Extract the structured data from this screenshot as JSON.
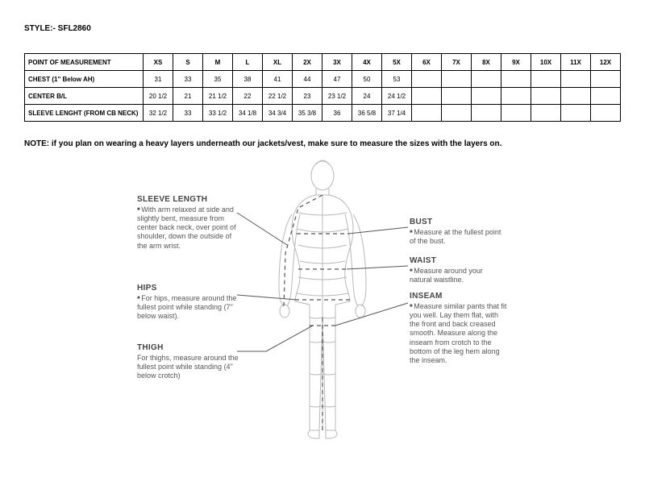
{
  "style_label": "STYLE:- SFL2860",
  "table": {
    "header_first": "POINT OF MEASUREMENT",
    "sizes": [
      "XS",
      "S",
      "M",
      "L",
      "XL",
      "2X",
      "3X",
      "4X",
      "5X",
      "6X",
      "7X",
      "8X",
      "9X",
      "10X",
      "11X",
      "12X"
    ],
    "rows": [
      {
        "label": "CHEST (1\" Below AH)",
        "values": [
          "31",
          "33",
          "35",
          "38",
          "41",
          "44",
          "47",
          "50",
          "53",
          "",
          "",
          "",
          "",
          "",
          "",
          ""
        ]
      },
      {
        "label": "CENTER B/L",
        "values": [
          "20 1/2",
          "21",
          "21 1/2",
          "22",
          "22 1/2",
          "23",
          "23 1/2",
          "24",
          "24 1/2",
          "",
          "",
          "",
          "",
          "",
          "",
          ""
        ]
      },
      {
        "label": "SLEEVE LENGHT (FROM CB NECK)",
        "values": [
          "32 1/2",
          "33",
          "33 1/2",
          "34 1/8",
          "34 3/4",
          "35 3/8",
          "36",
          "36 5/8",
          "37 1/4",
          "",
          "",
          "",
          "",
          "",
          "",
          ""
        ]
      }
    ]
  },
  "note_text": "NOTE: if you plan on wearing a heavy layers underneath our jackets/vest, make sure to measure the sizes with the layers on.",
  "diagram": {
    "sleeve_title": "SLEEVE LENGTH",
    "sleeve_text": "With arm relaxed at side and slightly bent, measure from center back neck, over point of shoulder, down the outside of the arm wrist.",
    "hips_title": "HIPS",
    "hips_text": "For hips, measure around the fullest point while standing (7\" below waist).",
    "thigh_title": "THIGH",
    "thigh_text": "For thighs, measure around the fullest point while standing (4\" below crotch)",
    "bust_title": "BUST",
    "bust_text": "Measure at the fullest point of the bust.",
    "waist_title": "WAIST",
    "waist_text": "Measure around your natural waistline.",
    "inseam_title": "INSEAM",
    "inseam_text": "Measure similar pants that fit you well. Lay them flat, with the front and back creased smooth. Measure along the inseam from crotch to the bottom of the leg hem along the inseam.",
    "colors": {
      "body_stroke": "#b8b8b8",
      "dash_stroke": "#555555",
      "leader_stroke": "#555555"
    }
  }
}
